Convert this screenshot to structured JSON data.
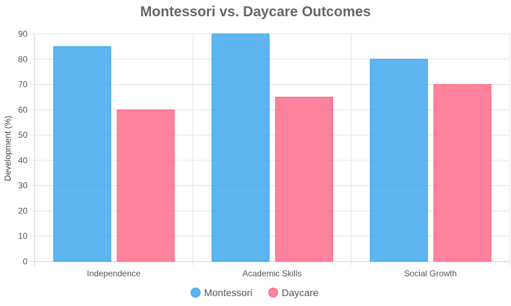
{
  "chart_data": {
    "type": "bar",
    "title": "Montessori vs. Daycare Outcomes",
    "xlabel": "",
    "ylabel": "Development (%)",
    "categories": [
      "Independence",
      "Academic Skills",
      "Social Growth"
    ],
    "series": [
      {
        "name": "Montessori",
        "values": [
          85,
          90,
          80
        ],
        "color": "#36A2EB"
      },
      {
        "name": "Daycare",
        "values": [
          60,
          65,
          70
        ],
        "color": "#FF6384"
      }
    ],
    "ylim": [
      0,
      90
    ],
    "yticks": [
      0,
      10,
      20,
      30,
      40,
      50,
      60,
      70,
      80,
      90
    ],
    "grid": true,
    "legend_position": "bottom"
  }
}
